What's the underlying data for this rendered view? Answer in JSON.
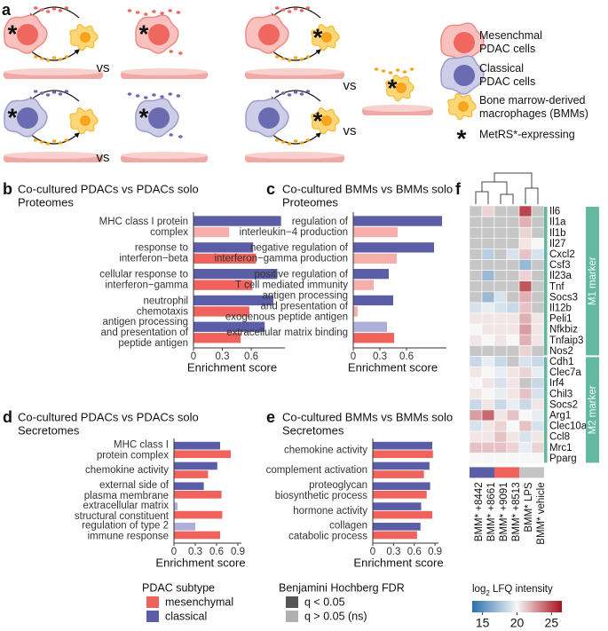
{
  "panel_a": {
    "label": "a",
    "vs": [
      "vs",
      "vs",
      "vs",
      "vs"
    ],
    "asterisk": "*",
    "legend": [
      [
        "Mesenchmal",
        "PDAC cells"
      ],
      [
        "Classical",
        "PDAC cells"
      ],
      [
        "Bone marrow-derived",
        "macrophages (BMMs)"
      ],
      [
        "MetRS*-expressing"
      ]
    ]
  },
  "bar_panels": [
    {
      "type": "bar",
      "label": "b",
      "title": [
        "Co-cultured PDACs vs PDACs solo",
        "Proteomes"
      ],
      "categories": [
        [
          "MHC class I protein",
          "complex"
        ],
        [
          "response to",
          "interferon−beta"
        ],
        [
          "cellular response to",
          "interferon−gamma"
        ],
        [
          "neutrophil",
          "chemotaxis"
        ],
        [
          "antigen processing",
          "and presentation of",
          "peptide antigen"
        ]
      ],
      "series": [
        {
          "name": "classical",
          "color": "#5b5ea6",
          "ns_color": "#aeafd6",
          "values": [
            0.91,
            0.62,
            0.87,
            0.83,
            0.74
          ],
          "significant": [
            true,
            true,
            true,
            true,
            true
          ]
        },
        {
          "name": "mesenchymal",
          "color": "#f0625c",
          "ns_color": "#f6aeab",
          "values": [
            0.37,
            0.65,
            0.61,
            0.58,
            0.49
          ],
          "significant": [
            false,
            true,
            true,
            true,
            true
          ]
        }
      ],
      "xlim": [
        0,
        0.95
      ],
      "xticks": [
        0,
        0.3,
        0.6
      ],
      "xlabel": "Enrichment score"
    },
    {
      "type": "bar",
      "label": "c",
      "title": [
        "Co-cultured BMMs vs BMMs solo",
        "Proteomes"
      ],
      "categories": [
        [
          "regulation of",
          "interleukin−4 production"
        ],
        [
          "negative regulation of",
          "interferon−gamma production"
        ],
        [
          "positive regulation of",
          "T cell mediated immunity"
        ],
        [
          "antigen processing",
          "and presentation of",
          "exogenous peptide antigen"
        ],
        [
          "extracellular matrix binding"
        ]
      ],
      "series": [
        {
          "name": "classical",
          "color": "#5b5ea6",
          "ns_color": "#aeafd6",
          "values": [
            1.0,
            0.91,
            0.4,
            0.45,
            0.38
          ],
          "significant": [
            true,
            true,
            true,
            true,
            false
          ]
        },
        {
          "name": "mesenchymal",
          "color": "#f0625c",
          "ns_color": "#f6aeab",
          "values": [
            0.5,
            0.49,
            0.23,
            0.05,
            0.46
          ],
          "significant": [
            false,
            false,
            false,
            false,
            true
          ]
        }
      ],
      "xlim": [
        0,
        1.05
      ],
      "xticks": [
        0,
        0.3,
        0.6
      ],
      "xlabel": "Enrichment score"
    },
    {
      "type": "bar",
      "label": "d",
      "title": [
        "Co-cultured PDACs vs PDACs solo",
        "Secretomes"
      ],
      "categories": [
        [
          "MHC class I",
          "protein complex"
        ],
        [
          "chemokine activity"
        ],
        [
          "external side of",
          "plasma membrane"
        ],
        [
          "extracellular matrix",
          "structural constituent"
        ],
        [
          "regulation of type 2",
          "immune response"
        ]
      ],
      "series": [
        {
          "name": "classical",
          "color": "#5b5ea6",
          "ns_color": "#aeafd6",
          "values": [
            0.65,
            0.61,
            0.42,
            0.05,
            0.3
          ],
          "significant": [
            true,
            true,
            true,
            false,
            false
          ]
        },
        {
          "name": "mesenchymal",
          "color": "#f0625c",
          "ns_color": "#f6aeab",
          "values": [
            0.8,
            0.48,
            0.67,
            0.68,
            0.65
          ],
          "significant": [
            true,
            true,
            true,
            true,
            true
          ]
        }
      ],
      "xlim": [
        0,
        0.95
      ],
      "xticks": [
        0,
        0.3,
        0.6,
        0.9
      ],
      "xlabel": "Enrichment score"
    },
    {
      "type": "bar",
      "label": "e",
      "title": [
        "Co-cultured BMMs vs BMMs solo",
        "Secretomes"
      ],
      "categories": [
        [
          "chemokine activity"
        ],
        [
          "complement activation"
        ],
        [
          "proteoglycan",
          "biosynthetic process"
        ],
        [
          "hormone activity"
        ],
        [
          "collagen",
          "catabolic process"
        ]
      ],
      "series": [
        {
          "name": "classical",
          "color": "#5b5ea6",
          "ns_color": "#aeafd6",
          "values": [
            0.86,
            0.82,
            0.83,
            0.7,
            0.69
          ],
          "significant": [
            true,
            true,
            true,
            true,
            true
          ]
        },
        {
          "name": "mesenchymal",
          "color": "#f0625c",
          "ns_color": "#f6aeab",
          "values": [
            0.87,
            0.74,
            0.78,
            0.86,
            0.64
          ],
          "significant": [
            true,
            true,
            true,
            true,
            true
          ]
        }
      ],
      "xlim": [
        0,
        0.95
      ],
      "xticks": [
        0,
        0.3,
        0.6,
        0.9
      ],
      "xlabel": "Enrichment score"
    }
  ],
  "bar_legend": {
    "subtype_title": "PDAC subtype",
    "subtypes": [
      {
        "name": "mesenchymal",
        "color": "#f0625c"
      },
      {
        "name": "classical",
        "color": "#5b5ea6"
      }
    ],
    "fdr_title": "Benjamini Hochberg FDR",
    "fdr": [
      {
        "name": "q < 0.05",
        "color": "#555555"
      },
      {
        "name": "q > 0.05 (ns)",
        "color": "#b0b0b0"
      }
    ]
  },
  "heatmap": {
    "type": "heatmap",
    "label": "f",
    "columns": [
      "BMM* +8442",
      "BMM* +8661",
      "BMM* +9091",
      "BMM* +8513",
      "BMM* LPS",
      "BMM* vehicle"
    ],
    "column_colors": [
      "#5b5ea6",
      "#5b5ea6",
      "#f0625c",
      "#f0625c",
      "#c4c4c4",
      "#c4c4c4"
    ],
    "groups": [
      {
        "label": "M1 marker",
        "color": "#62b9a0",
        "rows": [
          {
            "name": "Il6",
            "values": [
              null,
              21,
              null,
              null,
              25,
              null
            ]
          },
          {
            "name": "Il1a",
            "values": [
              null,
              null,
              null,
              null,
              22,
              null
            ]
          },
          {
            "name": "Il1b",
            "values": [
              null,
              null,
              null,
              null,
              21,
              null
            ]
          },
          {
            "name": "Il27",
            "values": [
              null,
              null,
              null,
              null,
              20.5,
              20
            ]
          },
          {
            "name": "Cxcl2",
            "values": [
              null,
              18,
              null,
              19,
              21.5,
              19
            ]
          },
          {
            "name": "Csf3",
            "values": [
              null,
              null,
              null,
              null,
              17,
              null
            ]
          },
          {
            "name": "Il23a",
            "values": [
              null,
              17,
              null,
              null,
              21,
              null
            ]
          },
          {
            "name": "Tnf",
            "values": [
              null,
              null,
              null,
              null,
              24.5,
              null
            ]
          },
          {
            "name": "Socs3",
            "values": [
              null,
              17,
              19,
              null,
              22,
              null
            ]
          },
          {
            "name": "Il12b",
            "values": [
              19,
              19.5,
              19,
              18.5,
              21.5,
              null
            ]
          },
          {
            "name": "Peli1",
            "values": [
              20.5,
              20.5,
              20.5,
              20.5,
              22,
              20.5
            ]
          },
          {
            "name": "Nfkbiz",
            "values": [
              20,
              20.5,
              20.5,
              20.5,
              22.5,
              20.5
            ]
          },
          {
            "name": "Tnfaip3",
            "values": [
              20.5,
              20,
              20.5,
              20,
              22,
              20.5
            ]
          },
          {
            "name": "Nos2",
            "values": [
              null,
              null,
              null,
              null,
              21,
              null
            ]
          }
        ]
      },
      {
        "label": "M2 marker",
        "color": "#62b9a0",
        "rows": [
          {
            "name": "Cdh1",
            "values": [
              18.5,
              19.5,
              18.5,
              null,
              19,
              18.5
            ]
          },
          {
            "name": "Clec7a",
            "values": [
              20.5,
              20,
              19.5,
              20.5,
              21,
              19.5
            ]
          },
          {
            "name": "Irf4",
            "values": [
              20,
              20.5,
              19,
              20.5,
              null,
              18.5
            ]
          },
          {
            "name": "Chil3",
            "values": [
              20.5,
              20,
              19.5,
              20.5,
              21.5,
              19
            ]
          },
          {
            "name": "Socs2",
            "values": [
              18.5,
              20.5,
              18.5,
              19.5,
              18.5,
              20.5
            ]
          },
          {
            "name": "Arg1",
            "values": [
              22.5,
              24,
              20.5,
              21.5,
              20,
              19.5
            ]
          },
          {
            "name": "Clec10a",
            "values": [
              19,
              20.5,
              21,
              20,
              21.5,
              19
            ]
          },
          {
            "name": "Ccl8",
            "values": [
              20.5,
              20.5,
              21.5,
              20.5,
              19,
              20.5
            ]
          },
          {
            "name": "Mrc1",
            "values": [
              21.5,
              21.5,
              21.5,
              21,
              19.5,
              21
            ]
          },
          {
            "name": "Pparg",
            "values": [
              20,
              20,
              20,
              20,
              20,
              20
            ]
          }
        ]
      }
    ],
    "na_color": "#c6c6c6",
    "colors": [
      "#2f6fad",
      "#f7f7f7",
      "#a8101c"
    ],
    "clim": [
      13.5,
      26.5
    ],
    "cticks": [
      15,
      20,
      25
    ],
    "colorbar_title": {
      "base": "log",
      "sub": "2",
      "rest": " LFQ intensity"
    }
  }
}
